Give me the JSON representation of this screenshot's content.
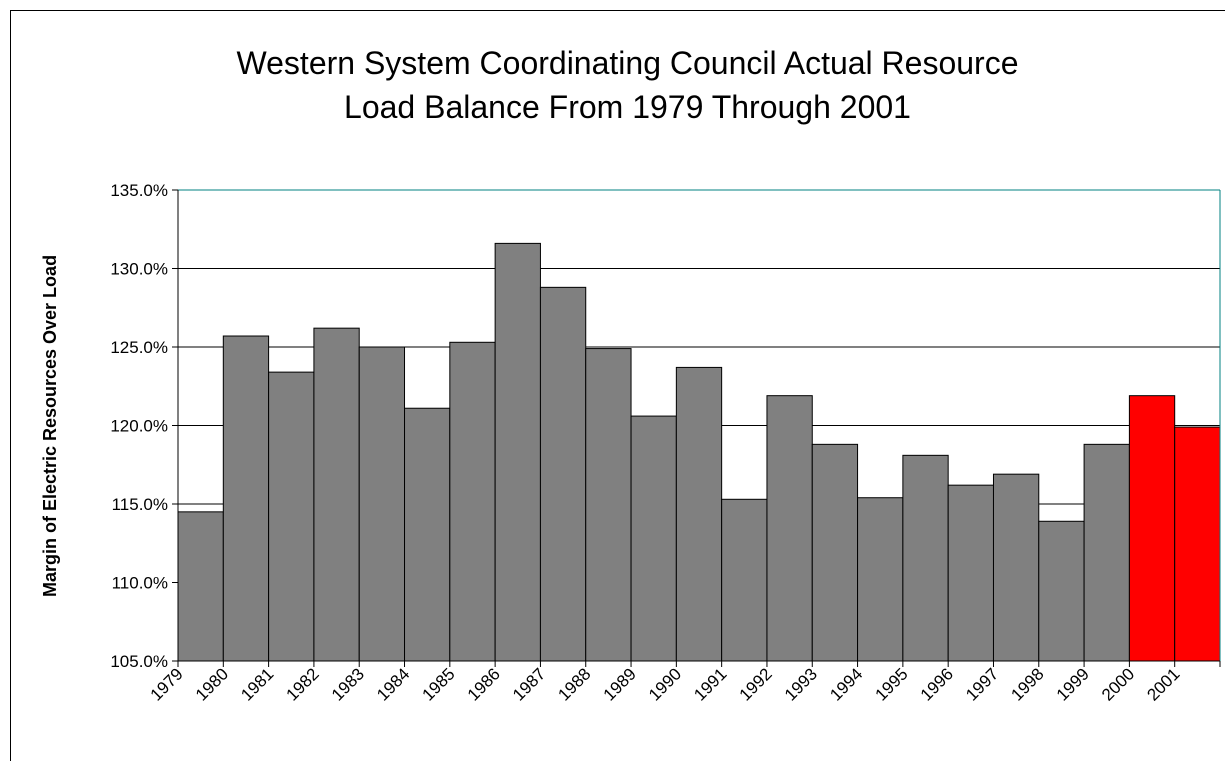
{
  "chart_data": {
    "type": "bar",
    "title": "Western System Coordinating Council Actual Resource\nLoad Balance From 1979 Through 2001",
    "xlabel": "",
    "ylabel": "Margin of Electric Resources Over Load",
    "ylim": [
      105.0,
      135.0
    ],
    "ytick_values": [
      105,
      110,
      115,
      120,
      125,
      130,
      135
    ],
    "ytick_labels": [
      "105.0%",
      "110.0%",
      "115.0%",
      "120.0%",
      "125.0%",
      "130.0%",
      "135.0%"
    ],
    "grid": true,
    "categories": [
      "1979",
      "1980",
      "1981",
      "1982",
      "1983",
      "1984",
      "1985",
      "1986",
      "1987",
      "1988",
      "1989",
      "1990",
      "1991",
      "1992",
      "1993",
      "1994",
      "1995",
      "1996",
      "1997",
      "1998",
      "1999",
      "2000",
      "2001"
    ],
    "values": [
      114.5,
      125.7,
      123.4,
      126.2,
      125.0,
      121.1,
      125.3,
      131.6,
      128.8,
      124.9,
      120.6,
      123.7,
      115.3,
      121.9,
      118.8,
      115.4,
      118.1,
      116.2,
      116.9,
      113.9,
      118.8,
      121.9,
      119.9
    ],
    "bar_colors": [
      "#808080",
      "#808080",
      "#808080",
      "#808080",
      "#808080",
      "#808080",
      "#808080",
      "#808080",
      "#808080",
      "#808080",
      "#808080",
      "#808080",
      "#808080",
      "#808080",
      "#808080",
      "#808080",
      "#808080",
      "#808080",
      "#808080",
      "#808080",
      "#808080",
      "#ff0000",
      "#ff0000"
    ],
    "colors": {
      "bar": "#808080",
      "highlight": "#ff0000",
      "plot_border": "#008080",
      "grid": "#000000"
    }
  }
}
